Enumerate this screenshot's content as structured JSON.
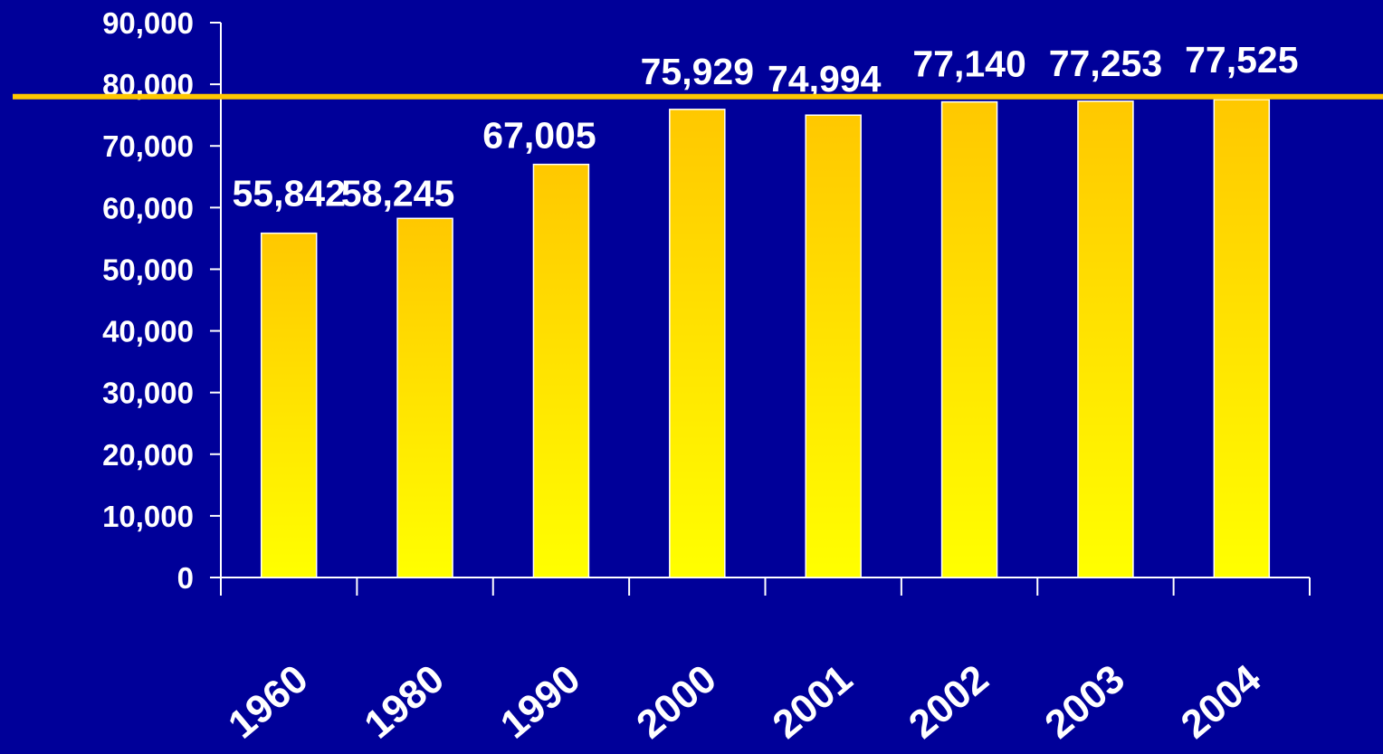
{
  "colors": {
    "background": "#000099",
    "axis": "#ffffff",
    "bar_top": "#ffc800",
    "bar_bottom": "#ffff00",
    "bar_border": "#ffffff",
    "reference_line": "#ffc800",
    "text": "#ffffff"
  },
  "chart_data": {
    "type": "bar",
    "title": "",
    "xlabel": "",
    "ylabel": "",
    "categories": [
      "1960",
      "1980",
      "1990",
      "2000",
      "2001",
      "2002",
      "2003",
      "2004"
    ],
    "values": [
      55842,
      58245,
      67005,
      75929,
      74994,
      77140,
      77253,
      77525
    ],
    "value_labels": [
      "55,842",
      "58,245",
      "67,005",
      "75,929",
      "74,994",
      "77,140",
      "77,253",
      "77,525"
    ],
    "ylim": [
      0,
      90000
    ],
    "yticks": [
      0,
      10000,
      20000,
      30000,
      40000,
      50000,
      60000,
      70000,
      80000,
      90000
    ],
    "ytick_labels": [
      "0",
      "10,000",
      "20,000",
      "30,000",
      "40,000",
      "50,000",
      "60,000",
      "70,000",
      "80,000",
      "90,000"
    ],
    "reference_line": {
      "y": 78000
    },
    "grid": false,
    "legend": "none"
  }
}
